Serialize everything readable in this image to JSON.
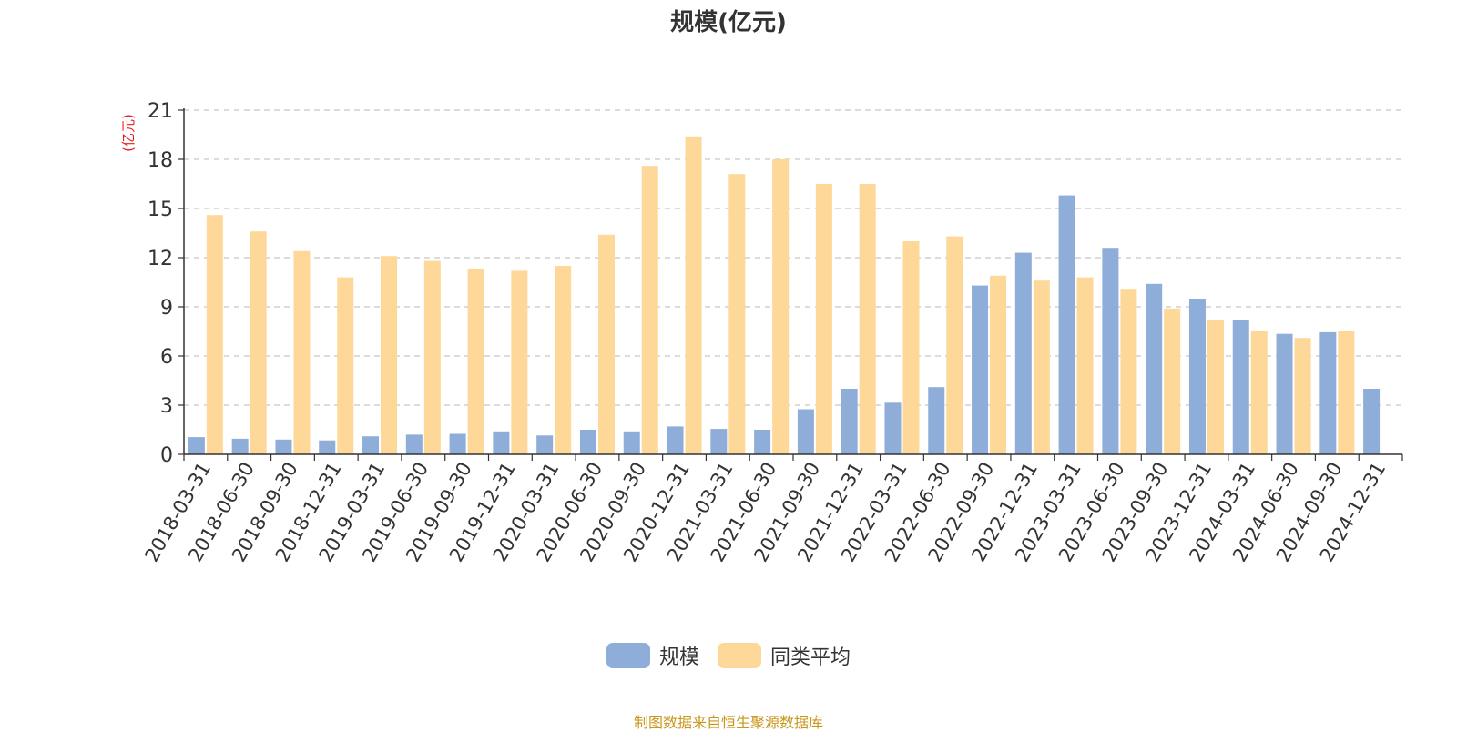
{
  "chart_data": {
    "type": "bar",
    "title": "规模(亿元)",
    "ylabel": "(亿元)",
    "xlabel": "",
    "ylim": [
      0,
      21
    ],
    "yticks": [
      0,
      3,
      6,
      9,
      12,
      15,
      18,
      21
    ],
    "categories": [
      "2018-03-31",
      "2018-06-30",
      "2018-09-30",
      "2018-12-31",
      "2019-03-31",
      "2019-06-30",
      "2019-09-30",
      "2019-12-31",
      "2020-03-31",
      "2020-06-30",
      "2020-09-30",
      "2020-12-31",
      "2021-03-31",
      "2021-06-30",
      "2021-09-30",
      "2021-12-31",
      "2022-03-31",
      "2022-06-30",
      "2022-09-30",
      "2022-12-31",
      "2023-03-31",
      "2023-06-30",
      "2023-09-30",
      "2023-12-31",
      "2024-03-31",
      "2024-06-30",
      "2024-09-30",
      "2024-12-31"
    ],
    "series": [
      {
        "name": "规模",
        "color": "#8eadd9",
        "values": [
          1.05,
          0.95,
          0.9,
          0.85,
          1.1,
          1.2,
          1.25,
          1.4,
          1.15,
          1.5,
          1.4,
          1.7,
          1.55,
          1.5,
          2.75,
          4.0,
          3.15,
          4.1,
          10.3,
          12.3,
          15.8,
          12.6,
          10.4,
          9.5,
          8.2,
          7.35,
          7.45,
          4.0
        ]
      },
      {
        "name": "同类平均",
        "color": "#fed899",
        "values": [
          14.6,
          13.6,
          12.4,
          10.8,
          12.1,
          11.8,
          11.3,
          11.2,
          11.5,
          13.4,
          17.6,
          19.4,
          17.1,
          18.0,
          16.5,
          16.5,
          13.0,
          13.3,
          10.9,
          10.6,
          10.8,
          10.1,
          8.9,
          8.2,
          7.5,
          7.1,
          7.5,
          null
        ]
      }
    ],
    "grid": true,
    "legend_position": "bottom-center"
  },
  "legend": {
    "items": [
      {
        "label": "规模",
        "color": "#8eadd9"
      },
      {
        "label": "同类平均",
        "color": "#fed899"
      }
    ]
  },
  "footer": {
    "source": "制图数据来自恒生聚源数据库"
  }
}
